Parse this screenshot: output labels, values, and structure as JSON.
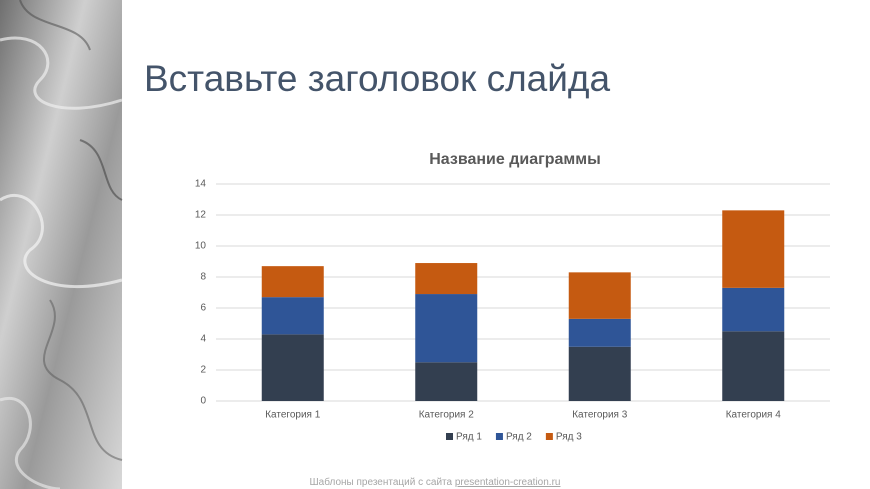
{
  "slide_title": "Вставьте заголовок слайда",
  "chart_data": {
    "type": "bar",
    "stacked": true,
    "title": "Название диаграммы",
    "categories": [
      "Категория 1",
      "Категория 2",
      "Категория 3",
      "Категория 4"
    ],
    "series": [
      {
        "name": "Ряд 1",
        "color": "#333f50",
        "values": [
          4.3,
          2.5,
          3.5,
          4.5
        ]
      },
      {
        "name": "Ряд 2",
        "color": "#2f5597",
        "values": [
          2.4,
          4.4,
          1.8,
          2.8
        ]
      },
      {
        "name": "Ряд 3",
        "color": "#c55a11",
        "values": [
          2,
          2,
          3,
          5
        ]
      }
    ],
    "ylim": [
      0,
      14
    ],
    "yticks": [
      0,
      2,
      4,
      6,
      8,
      10,
      12,
      14
    ],
    "grid": true,
    "legend": "bottom"
  },
  "footer": {
    "text": "Шаблоны презентаций с сайта",
    "link": "presentation-creation.ru"
  }
}
